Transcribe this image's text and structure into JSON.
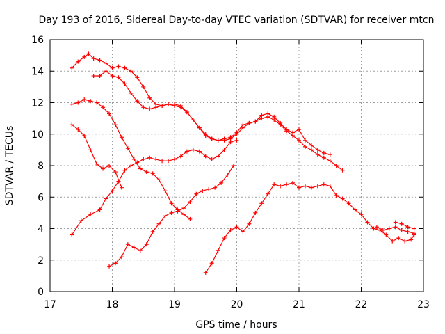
{
  "chart_data": {
    "type": "scatter",
    "title": "Day 193 of 2016, Sidereal Day-to-day VTEC variation (SDTVAR) for receiver mtcn",
    "xlabel": "GPS time / hours",
    "ylabel": "SDTVAR / TECUs",
    "xlim": [
      17,
      23
    ],
    "ylim": [
      0,
      16
    ],
    "xticks": [
      "17",
      "18",
      "19",
      "20",
      "21",
      "22",
      "23"
    ],
    "yticks": [
      "0",
      "2",
      "4",
      "6",
      "8",
      "10",
      "12",
      "14",
      "16"
    ],
    "grid": true,
    "marker": "+",
    "color": "#ff0000",
    "series": [
      {
        "name": "s1",
        "x": [
          17.35,
          17.45,
          17.55,
          17.62,
          17.7,
          17.8,
          17.9,
          18.0,
          18.1,
          18.2,
          18.3,
          18.4,
          18.5,
          18.6,
          18.7,
          18.8,
          18.9,
          19.0,
          19.1,
          19.2,
          19.3,
          19.4,
          19.5,
          19.6,
          19.7,
          19.8,
          19.9,
          20.0,
          20.1,
          20.2,
          20.3,
          20.4,
          20.5,
          20.6,
          20.7,
          20.8,
          20.9,
          21.0,
          21.1,
          21.2,
          21.3,
          21.4,
          21.5
        ],
        "y": [
          14.2,
          14.6,
          14.9,
          15.1,
          14.8,
          14.7,
          14.5,
          14.2,
          14.3,
          14.2,
          14.0,
          13.6,
          13.0,
          12.3,
          11.9,
          11.8,
          11.9,
          11.9,
          11.8,
          11.4,
          10.9,
          10.4,
          9.9,
          9.7,
          9.6,
          9.7,
          9.8,
          10.1,
          10.6,
          10.7,
          10.8,
          11.2,
          11.3,
          11.1,
          10.7,
          10.3,
          10.1,
          10.3,
          9.6,
          9.3,
          9.0,
          8.8,
          8.7
        ]
      },
      {
        "name": "s2",
        "x": [
          17.7,
          17.8,
          17.9,
          18.0,
          18.1,
          18.2,
          18.3,
          18.4,
          18.5,
          18.6,
          18.7,
          18.8,
          18.9,
          19.0,
          19.1,
          19.2,
          19.3,
          19.4,
          19.5,
          19.6,
          19.7,
          19.8,
          19.9,
          20.0,
          20.1,
          20.2,
          20.3,
          20.4,
          20.5,
          20.6,
          20.7,
          20.8,
          20.9,
          21.0,
          21.1,
          21.2,
          21.3,
          21.4,
          21.5,
          21.6,
          21.7
        ],
        "y": [
          13.7,
          13.7,
          14.0,
          13.7,
          13.6,
          13.2,
          12.6,
          12.1,
          11.7,
          11.6,
          11.7,
          11.8,
          11.9,
          11.8,
          11.7,
          11.4,
          10.9,
          10.4,
          10.0,
          9.7,
          9.6,
          9.6,
          9.7,
          10.0,
          10.4,
          10.7,
          10.8,
          11.0,
          11.1,
          10.9,
          10.6,
          10.2,
          9.9,
          9.6,
          9.2,
          9.0,
          8.7,
          8.5,
          8.3,
          8.0,
          7.7
        ]
      },
      {
        "name": "s3",
        "x": [
          17.35,
          17.45,
          17.55,
          17.65,
          17.75,
          17.85,
          17.95,
          18.05,
          18.15,
          18.25,
          18.35,
          18.45,
          18.55,
          18.65,
          18.75,
          18.85,
          18.95,
          19.05,
          19.15,
          19.25
        ],
        "y": [
          11.9,
          12.0,
          12.2,
          12.1,
          12.0,
          11.7,
          11.3,
          10.6,
          9.8,
          9.1,
          8.4,
          7.8,
          7.6,
          7.5,
          7.1,
          6.4,
          5.6,
          5.2,
          4.9,
          4.6
        ]
      },
      {
        "name": "s4",
        "x": [
          17.35,
          17.45,
          17.55,
          17.65,
          17.75,
          17.85,
          17.95,
          18.05,
          18.15
        ],
        "y": [
          10.6,
          10.3,
          9.9,
          9.0,
          8.1,
          7.8,
          8.0,
          7.6,
          6.6
        ]
      },
      {
        "name": "s5",
        "x": [
          17.35,
          17.5,
          17.65,
          17.8,
          17.9,
          18.0,
          18.1,
          18.2,
          18.3,
          18.4,
          18.5,
          18.6,
          18.7,
          18.8,
          18.9,
          19.0,
          19.1,
          19.2,
          19.3,
          19.4,
          19.5,
          19.6,
          19.7,
          19.8,
          19.9,
          20.0
        ],
        "y": [
          3.6,
          4.5,
          4.9,
          5.2,
          5.9,
          6.4,
          7.0,
          7.7,
          8.0,
          8.2,
          8.4,
          8.5,
          8.4,
          8.3,
          8.3,
          8.4,
          8.6,
          8.9,
          9.0,
          8.9,
          8.6,
          8.4,
          8.6,
          9.0,
          9.5,
          9.6
        ]
      },
      {
        "name": "s6",
        "x": [
          17.95,
          18.05,
          18.15,
          18.25,
          18.35,
          18.45,
          18.55,
          18.65,
          18.75,
          18.85,
          18.95,
          19.05,
          19.15,
          19.25,
          19.35,
          19.45,
          19.55,
          19.65,
          19.75,
          19.85,
          19.95
        ],
        "y": [
          1.6,
          1.8,
          2.2,
          3.0,
          2.8,
          2.6,
          3.0,
          3.8,
          4.3,
          4.8,
          5.0,
          5.1,
          5.3,
          5.7,
          6.2,
          6.4,
          6.5,
          6.6,
          6.9,
          7.4,
          8.0
        ]
      },
      {
        "name": "s7",
        "x": [
          19.5,
          19.6,
          19.7,
          19.8,
          19.9,
          20.0,
          20.1,
          20.2,
          20.3,
          20.4,
          20.5,
          20.6,
          20.7,
          20.8,
          20.9,
          21.0,
          21.1,
          21.2,
          21.3,
          21.4,
          21.5,
          21.6,
          21.7,
          21.8,
          21.9,
          22.0,
          22.1,
          22.2,
          22.3,
          22.4,
          22.5,
          22.6,
          22.7,
          22.8,
          22.85
        ],
        "y": [
          1.2,
          1.8,
          2.6,
          3.4,
          3.9,
          4.1,
          3.8,
          4.3,
          5.0,
          5.6,
          6.2,
          6.8,
          6.7,
          6.8,
          6.9,
          6.6,
          6.7,
          6.6,
          6.7,
          6.8,
          6.7,
          6.1,
          5.9,
          5.6,
          5.2,
          4.9,
          4.4,
          4.0,
          3.9,
          3.6,
          3.2,
          3.4,
          3.2,
          3.3,
          3.6
        ]
      },
      {
        "name": "s8",
        "x": [
          22.25,
          22.35,
          22.45,
          22.55,
          22.65,
          22.75,
          22.85
        ],
        "y": [
          4.1,
          3.9,
          4.0,
          4.1,
          3.9,
          3.8,
          3.7
        ]
      },
      {
        "name": "s9",
        "x": [
          22.55,
          22.65,
          22.75,
          22.85
        ],
        "y": [
          4.4,
          4.3,
          4.1,
          4.0
        ]
      }
    ]
  }
}
